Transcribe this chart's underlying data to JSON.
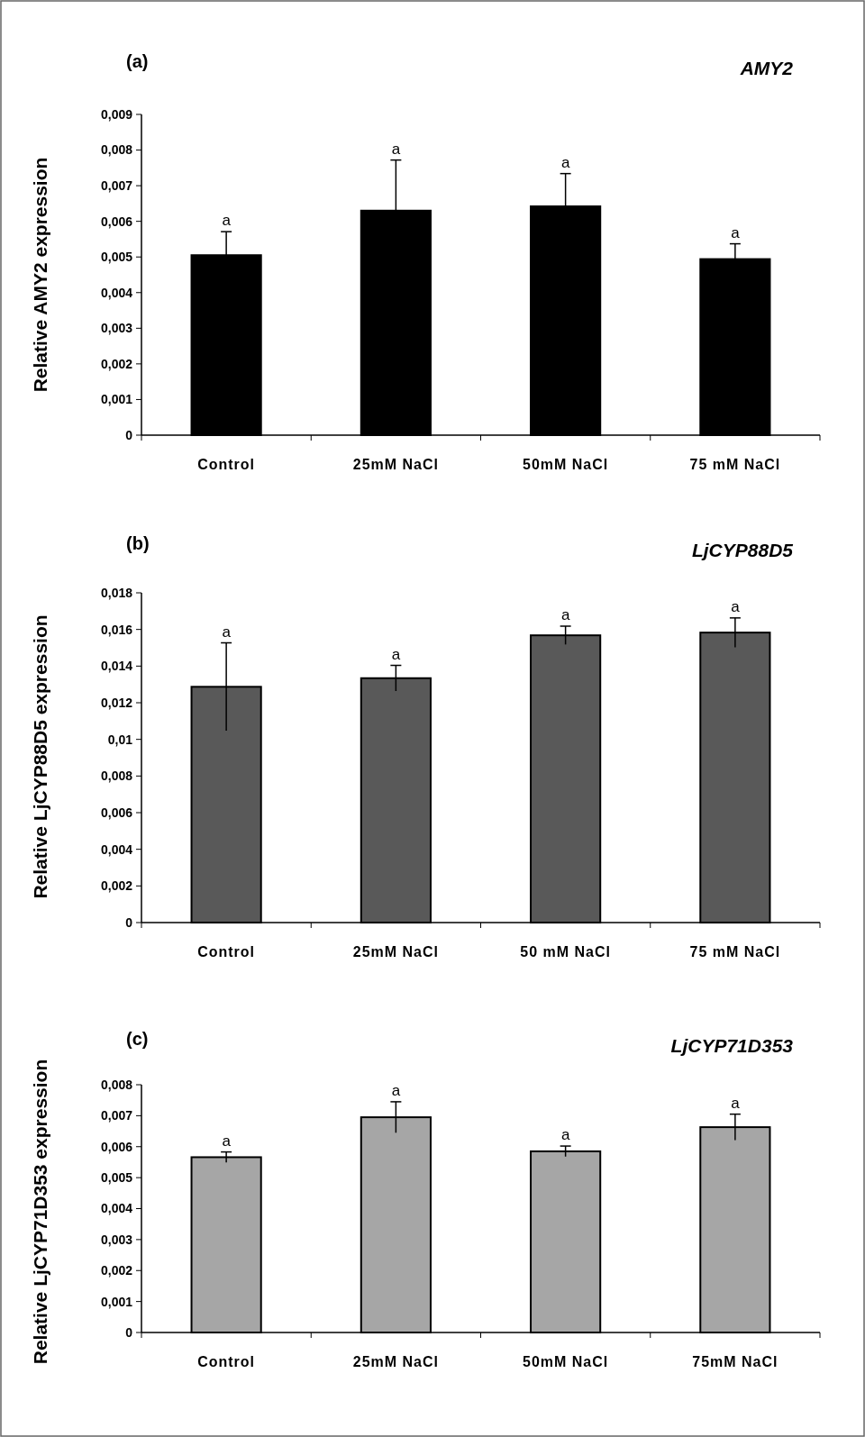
{
  "chart_data": [
    {
      "type": "bar",
      "title": "(a)",
      "subtitle": "AMY2",
      "ylabel": "Relative AMY2 expression",
      "categories": [
        "Control",
        "25mM NaCl",
        "50mM NaCl",
        "75 mM NaCl"
      ],
      "values": [
        0.00505,
        0.0063,
        0.00642,
        0.00494
      ],
      "errors": [
        0.00066,
        0.00142,
        0.00092,
        0.00043
      ],
      "color": "#000000",
      "ylim": [
        0,
        0.009
      ],
      "yticks": [
        {
          "value": 0,
          "label": "0"
        },
        {
          "value": 0.001,
          "label": "0,001"
        },
        {
          "value": 0.002,
          "label": "0,002"
        },
        {
          "value": 0.003,
          "label": "0,003"
        },
        {
          "value": 0.004,
          "label": "0,004"
        },
        {
          "value": 0.005,
          "label": "0,005"
        },
        {
          "value": 0.006,
          "label": "0,006"
        },
        {
          "value": 0.007,
          "label": "0,007"
        },
        {
          "value": 0.008,
          "label": "0,008"
        },
        {
          "value": 0.009,
          "label": "0,009"
        }
      ],
      "grid": false,
      "annotations": [
        {
          "text": "a",
          "x": "Control",
          "y": 0.00571
        },
        {
          "text": "a",
          "x": "25mM NaCl",
          "y": 0.00772
        },
        {
          "text": "a",
          "x": "50mM NaCl",
          "y": 0.00734
        },
        {
          "text": "a",
          "x": "75 mM NaCl",
          "y": 0.00537
        }
      ]
    },
    {
      "type": "bar",
      "title": "(b)",
      "subtitle": "LjCYP88D5",
      "ylabel": "Relative LjCYP88D5 expression",
      "categories": [
        "Control",
        "25mM NaCl",
        "50 mM NaCl",
        "75 mM NaCl"
      ],
      "values": [
        0.01287,
        0.01334,
        0.01568,
        0.01583
      ],
      "errors": [
        0.0024,
        0.0007,
        0.0005,
        0.0008
      ],
      "color": "#595959",
      "ylim": [
        0,
        0.018
      ],
      "yticks": [
        {
          "value": 0,
          "label": "0"
        },
        {
          "value": 0.002,
          "label": "0,002"
        },
        {
          "value": 0.004,
          "label": "0,004"
        },
        {
          "value": 0.006,
          "label": "0,006"
        },
        {
          "value": 0.008,
          "label": "0,008"
        },
        {
          "value": 0.01,
          "label": "0,01"
        },
        {
          "value": 0.012,
          "label": "0,012"
        },
        {
          "value": 0.014,
          "label": "0,014"
        },
        {
          "value": 0.016,
          "label": "0,016"
        },
        {
          "value": 0.018,
          "label": "0,018"
        }
      ],
      "grid": false,
      "annotations": [
        {
          "text": "a",
          "x": "Control",
          "y": 0.01527
        },
        {
          "text": "a",
          "x": "25mM NaCl",
          "y": 0.01404
        },
        {
          "text": "a",
          "x": "50 mM NaCl",
          "y": 0.01618
        },
        {
          "text": "a",
          "x": "75 mM NaCl",
          "y": 0.01663
        }
      ]
    },
    {
      "type": "bar",
      "title": "(c)",
      "subtitle": "LjCYP71D353",
      "ylabel": "Relative LjCYP71D353 expression",
      "categories": [
        "Control",
        "25mM NaCl",
        "50mM NaCl",
        "75mM NaCl"
      ],
      "values": [
        0.00566,
        0.00695,
        0.00585,
        0.00663
      ],
      "errors": [
        0.00017,
        0.0005,
        0.00017,
        0.00042
      ],
      "color": "#a6a6a6",
      "ylim": [
        0,
        0.008
      ],
      "yticks": [
        {
          "value": 0,
          "label": "0"
        },
        {
          "value": 0.001,
          "label": "0,001"
        },
        {
          "value": 0.002,
          "label": "0,002"
        },
        {
          "value": 0.003,
          "label": "0,003"
        },
        {
          "value": 0.004,
          "label": "0,004"
        },
        {
          "value": 0.005,
          "label": "0,005"
        },
        {
          "value": 0.006,
          "label": "0,006"
        },
        {
          "value": 0.007,
          "label": "0,007"
        },
        {
          "value": 0.008,
          "label": "0,008"
        }
      ],
      "grid": false,
      "annotations": [
        {
          "text": "a",
          "x": "Control",
          "y": 0.00583
        },
        {
          "text": "a",
          "x": "25mM NaCl",
          "y": 0.00745
        },
        {
          "text": "a",
          "x": "50mM NaCl",
          "y": 0.00602
        },
        {
          "text": "a",
          "x": "75mM NaCl",
          "y": 0.00705
        }
      ]
    }
  ]
}
